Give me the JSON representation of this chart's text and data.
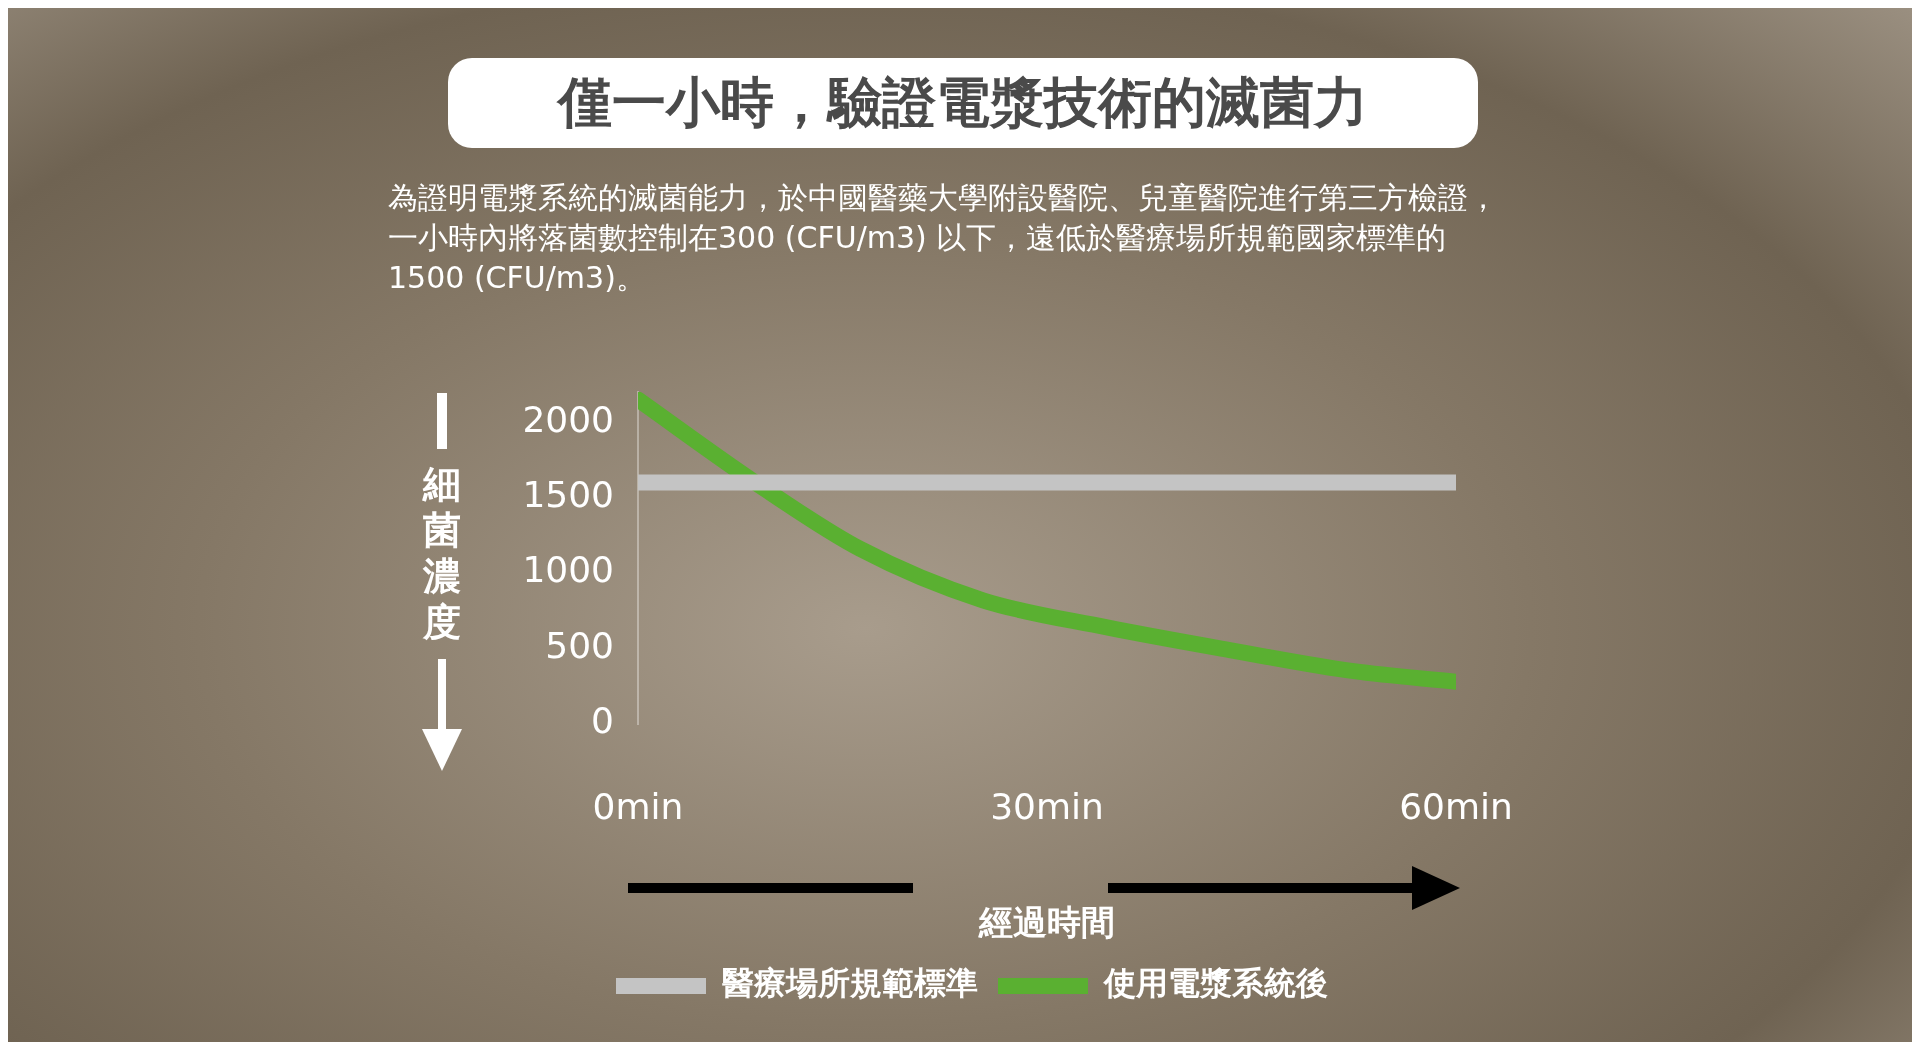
{
  "chart_data": {
    "type": "line",
    "title": "僅一小時，驗證電漿技術的滅菌力",
    "subtitle": "為證明電漿系統的滅菌能力，於中國醫藥大學附設醫院、兒童醫院進行第三方檢證，一小時內將落菌數控制在300 (CFU/m3) 以下，遠低於醫療場所規範國家標準的1500 (CFU/m3)。",
    "xlabel": "經過時間",
    "ylabel": "細菌濃度",
    "series": [
      {
        "name": "醫療場所規範標準",
        "color": "#c4c4c4",
        "x": [
          0,
          60
        ],
        "values": [
          1600,
          1600
        ]
      },
      {
        "name": "使用電漿系統後",
        "color": "#5ab031",
        "x": [
          0,
          8.6,
          16.3,
          25.3,
          34.4,
          43.4,
          52.5,
          60
        ],
        "values": [
          2150,
          1600,
          1160,
          820,
          640,
          490,
          350,
          280
        ]
      }
    ],
    "xlim": [
      0,
      60
    ],
    "xticks": [
      {
        "value": 0,
        "label": "0min"
      },
      {
        "value": 30,
        "label": "30min"
      },
      {
        "value": 60,
        "label": "60min"
      }
    ],
    "ylim": [
      0,
      2200
    ],
    "yticks": [
      0,
      500,
      1000,
      1500,
      2000
    ],
    "grid": false,
    "legend": "bottom",
    "marker": "none",
    "line_style": "solid"
  }
}
